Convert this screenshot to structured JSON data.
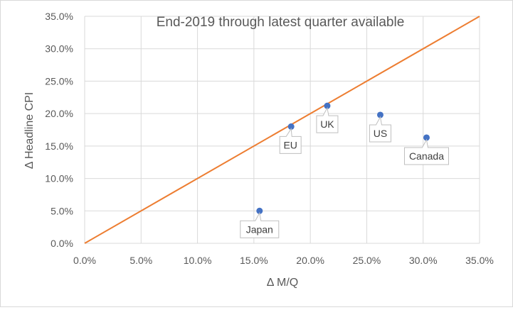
{
  "chart_data": {
    "type": "scatter",
    "title": "End-2019 through latest quarter available",
    "xlabel": "Δ M/Q",
    "ylabel": "Δ Headline CPI",
    "xlim": [
      0,
      0.35
    ],
    "ylim": [
      0,
      0.35
    ],
    "x_ticks": [
      "0.0%",
      "5.0%",
      "10.0%",
      "15.0%",
      "20.0%",
      "25.0%",
      "30.0%",
      "35.0%"
    ],
    "y_ticks": [
      "0.0%",
      "5.0%",
      "10.0%",
      "15.0%",
      "20.0%",
      "25.0%",
      "30.0%",
      "35.0%"
    ],
    "grid": true,
    "legend": "none",
    "reference_line": {
      "from": [
        0,
        0
      ],
      "to": [
        0.35,
        0.35
      ],
      "color": "#ED7D31"
    },
    "point_color": "#4472C4",
    "points": [
      {
        "label": "Japan",
        "x": 0.155,
        "y": 0.05
      },
      {
        "label": "EU",
        "x": 0.183,
        "y": 0.18
      },
      {
        "label": "UK",
        "x": 0.215,
        "y": 0.212
      },
      {
        "label": "US",
        "x": 0.262,
        "y": 0.198
      },
      {
        "label": "Canada",
        "x": 0.303,
        "y": 0.163
      }
    ]
  }
}
